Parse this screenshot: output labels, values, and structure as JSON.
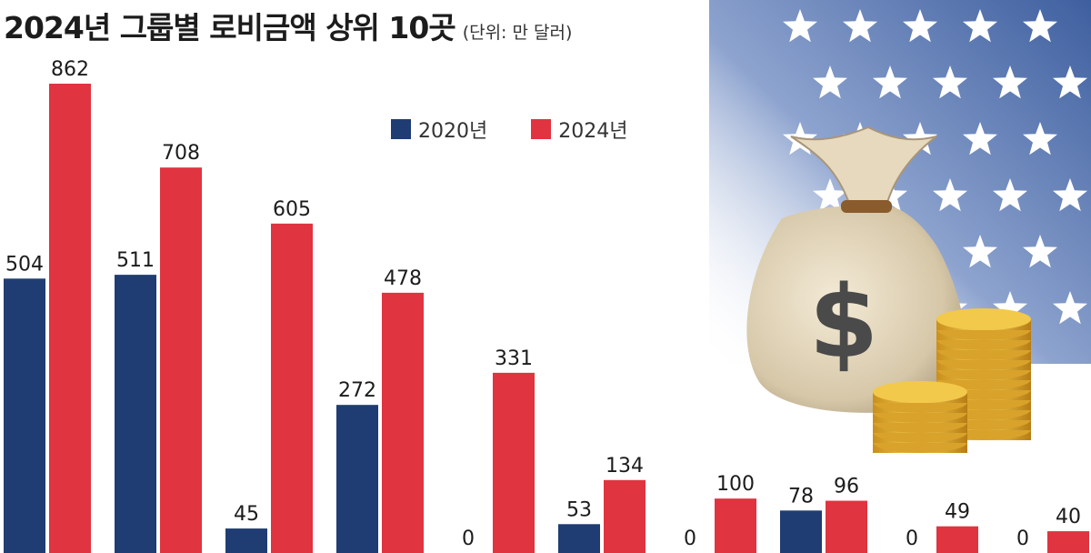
{
  "title": "2024년 그룹별 로비금액 상위 10곳",
  "unit_note": "(단위: 만 달러)",
  "colors": {
    "2020": "#1f3d73",
    "2024": "#e03440",
    "flag_blue": "#4a6aa8",
    "money_bag": "#d8cbb1",
    "coins": "#e2b33a"
  },
  "illustration": {
    "description_icons": [
      "us-flag-stars",
      "money-bag-icon",
      "dollar-sign-icon",
      "gold-coins-icon"
    ]
  },
  "chart_data": {
    "type": "bar",
    "title": "2024년 그룹별 로비금액 상위 10곳",
    "xlabel": "",
    "ylabel": "",
    "ylim": [
      0,
      862
    ],
    "legend_position": "top-center",
    "grid": false,
    "series": [
      {
        "name": "2020년",
        "values": [
          504,
          511,
          45,
          272,
          0,
          53,
          0,
          78,
          0,
          0
        ]
      },
      {
        "name": "2024년",
        "values": [
          862,
          708,
          605,
          478,
          331,
          134,
          100,
          96,
          49,
          40
        ]
      }
    ]
  }
}
